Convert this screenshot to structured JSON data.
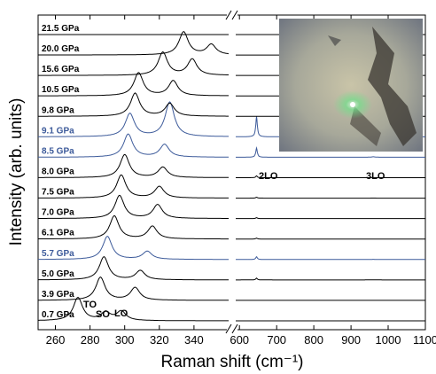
{
  "chart_data": {
    "type": "line",
    "xlabel": "Raman shift (cm⁻¹)",
    "ylabel": "Intensity (arb. units)",
    "left_panel": {
      "xlim": [
        250,
        360
      ],
      "ticks": [
        260,
        280,
        300,
        320,
        340
      ],
      "tick_labels": [
        "260",
        "280",
        "300",
        "320",
        "340"
      ]
    },
    "right_panel": {
      "xlim": [
        590,
        1100
      ],
      "ticks": [
        600,
        700,
        800,
        900,
        1000,
        1100
      ],
      "tick_labels": [
        "600",
        "700",
        "800",
        "900",
        "1000",
        "1100"
      ]
    },
    "axis_break": true,
    "inset": "optical micrograph of sample with green laser spot",
    "annotations": [
      "TO",
      "SO",
      "LO",
      "2LO",
      "3LO"
    ],
    "series": [
      {
        "pressure": 0.7,
        "label": "0.7 GPa",
        "color": "#000000",
        "peaks": [
          [
            273,
            1.0
          ],
          [
            289,
            0.35
          ],
          [
            298,
            0.4
          ]
        ],
        "overtone": 0
      },
      {
        "pressure": 3.9,
        "label": "3.9 GPa",
        "color": "#000000",
        "peaks": [
          [
            286,
            1.0
          ],
          [
            306,
            0.55
          ]
        ],
        "overtone": 0
      },
      {
        "pressure": 5.0,
        "label": "5.0 GPa",
        "color": "#000000",
        "peaks": [
          [
            288,
            1.0
          ],
          [
            309,
            0.4
          ]
        ],
        "overtone": 0.2
      },
      {
        "pressure": 5.7,
        "label": "5.7 GPa",
        "color": "#3c5a9a",
        "peaks": [
          [
            290,
            1.0
          ],
          [
            313,
            0.35
          ]
        ],
        "overtone": 0.3
      },
      {
        "pressure": 6.1,
        "label": "6.1 GPa",
        "color": "#000000",
        "peaks": [
          [
            294,
            1.0
          ],
          [
            316,
            0.55
          ]
        ],
        "overtone": 0.1
      },
      {
        "pressure": 7.0,
        "label": "7.0 GPa",
        "color": "#000000",
        "peaks": [
          [
            297,
            1.0
          ],
          [
            319,
            0.6
          ]
        ],
        "overtone": 0.1
      },
      {
        "pressure": 7.5,
        "label": "7.5 GPa",
        "color": "#000000",
        "peaks": [
          [
            298,
            1.0
          ],
          [
            320,
            0.5
          ]
        ],
        "overtone": 0.1
      },
      {
        "pressure": 8.0,
        "label": "8.0 GPa",
        "color": "#000000",
        "peaks": [
          [
            300,
            1.0
          ],
          [
            322,
            0.45
          ]
        ],
        "overtone": 0.2
      },
      {
        "pressure": 8.5,
        "label": "8.5 GPa",
        "color": "#3c5a9a",
        "peaks": [
          [
            302,
            1.0
          ],
          [
            323,
            0.55
          ]
        ],
        "overtone": 1.0
      },
      {
        "pressure": 9.1,
        "label": "9.1 GPa",
        "color": "#3c5a9a",
        "peaks": [
          [
            303,
            1.0
          ],
          [
            326,
            1.5
          ]
        ],
        "overtone": 2.2
      },
      {
        "pressure": 9.8,
        "label": "9.8 GPa",
        "color": "#000000",
        "peaks": [
          [
            306,
            1.0
          ],
          [
            326,
            0.55
          ]
        ],
        "overtone": 0
      },
      {
        "pressure": 10.5,
        "label": "10.5 GPa",
        "color": "#000000",
        "peaks": [
          [
            308,
            1.0
          ],
          [
            328,
            0.65
          ]
        ],
        "overtone": 0
      },
      {
        "pressure": 15.6,
        "label": "15.6 GPa",
        "color": "#000000",
        "peaks": [
          [
            322,
            1.0
          ],
          [
            339,
            0.7
          ]
        ],
        "overtone": 0
      },
      {
        "pressure": 20.0,
        "label": "20.0 GPa",
        "color": "#000000",
        "peaks": [
          [
            334,
            1.0
          ],
          [
            350,
            0.45
          ]
        ],
        "overtone": 0
      },
      {
        "pressure": 21.5,
        "label": "21.5 GPa",
        "color": "#000000",
        "peaks": [],
        "overtone": 0
      }
    ]
  }
}
